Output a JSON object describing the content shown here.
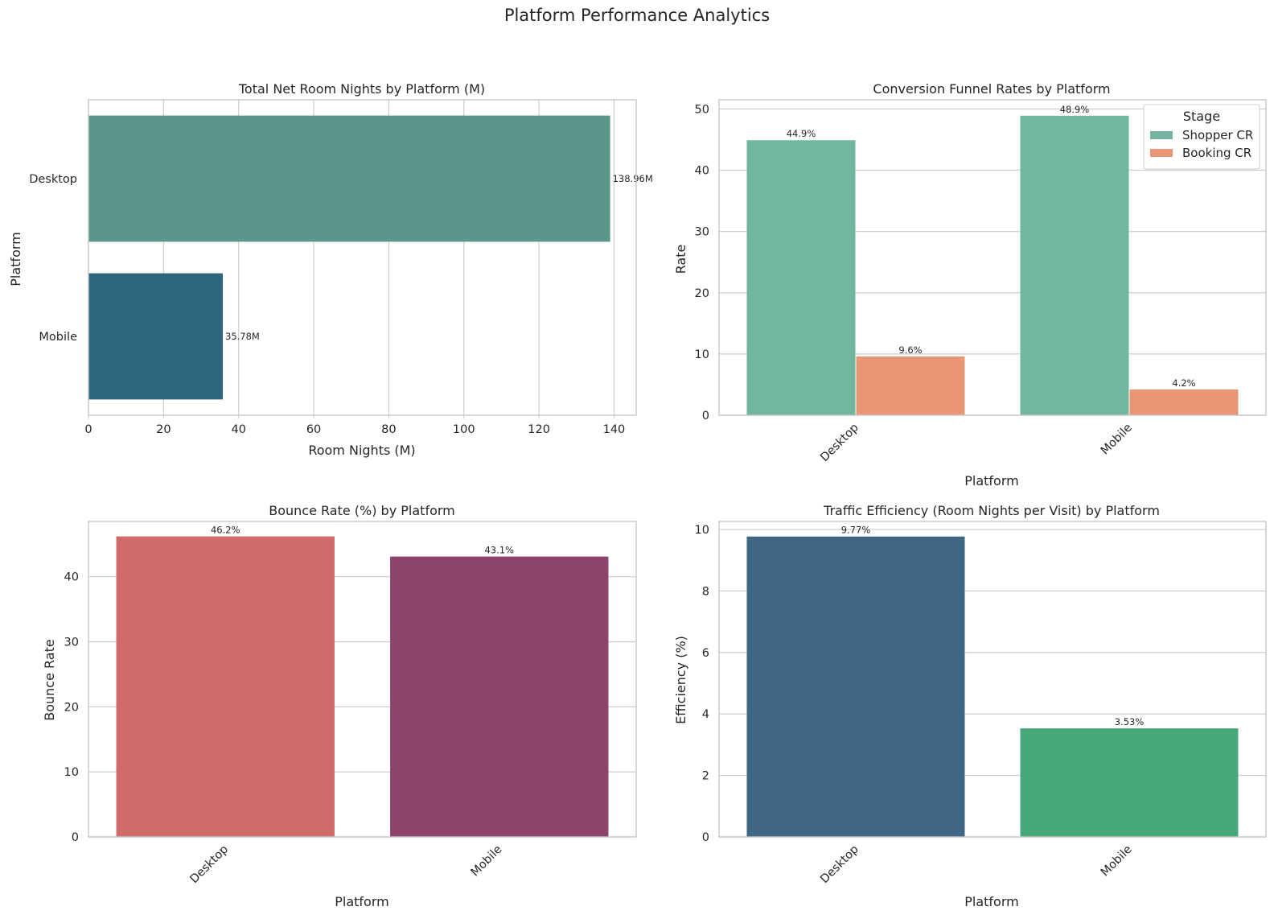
{
  "figure": {
    "title": "Platform Performance Analytics"
  },
  "chart_data": [
    {
      "type": "bar",
      "orientation": "horizontal",
      "title": "Total Net Room Nights by Platform (M)",
      "xlabel": "Room Nights (M)",
      "ylabel": "Platform",
      "categories": [
        "Desktop",
        "Mobile"
      ],
      "values": [
        138.96,
        35.78
      ],
      "data_labels": [
        "138.96M",
        "35.78M"
      ],
      "colors": [
        "#5b968a",
        "#2d667c"
      ],
      "xlim": [
        0,
        145.9
      ],
      "xticks": [
        0,
        20,
        40,
        60,
        80,
        100,
        120,
        140
      ],
      "grid": true
    },
    {
      "type": "bar",
      "title": "Conversion Funnel Rates by Platform",
      "xlabel": "Platform",
      "ylabel": "Rate",
      "categories": [
        "Desktop",
        "Mobile"
      ],
      "series": [
        {
          "name": "Shopper CR",
          "values": [
            44.9,
            48.9
          ],
          "data_labels": [
            "44.9%",
            "48.9%"
          ],
          "color": "#73b6a0"
        },
        {
          "name": "Booking CR",
          "values": [
            9.6,
            4.2
          ],
          "data_labels": [
            "9.6%",
            "4.2%"
          ],
          "color": "#e89673"
        }
      ],
      "legend": {
        "title": "Stage",
        "placement": "upper-right"
      },
      "ylim": [
        0,
        51.5
      ],
      "yticks": [
        0,
        10,
        20,
        30,
        40,
        50
      ],
      "grid": true
    },
    {
      "type": "bar",
      "title": "Bounce Rate (%) by Platform",
      "xlabel": "Platform",
      "ylabel": "Bounce Rate",
      "categories": [
        "Desktop",
        "Mobile"
      ],
      "values": [
        46.2,
        43.1
      ],
      "data_labels": [
        "46.2%",
        "43.1%"
      ],
      "colors": [
        "#cf6b6a",
        "#8c436c"
      ],
      "ylim": [
        0,
        48.5
      ],
      "yticks": [
        0,
        10,
        20,
        30,
        40
      ],
      "grid": true
    },
    {
      "type": "bar",
      "title": "Traffic Efficiency (Room Nights per Visit) by Platform",
      "xlabel": "Platform",
      "ylabel": "Efficiency (%)",
      "categories": [
        "Desktop",
        "Mobile"
      ],
      "values": [
        9.77,
        3.53
      ],
      "data_labels": [
        "9.77%",
        "3.53%"
      ],
      "colors": [
        "#3f6682",
        "#46a878"
      ],
      "ylim": [
        0,
        10.26
      ],
      "yticks": [
        0,
        2,
        4,
        6,
        8,
        10
      ],
      "grid": true
    }
  ]
}
